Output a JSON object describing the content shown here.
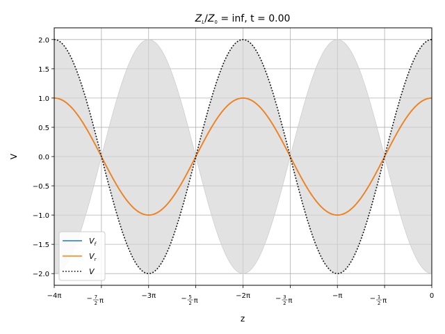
{
  "chart_data": {
    "type": "line",
    "title": "Z_L/Z_0 = inf, t = 0.00",
    "title_parts": {
      "lhs_main": "Z",
      "lhs_sub": "L",
      "slash": "/",
      "rhs_main": "Z",
      "rhs_sub": "0",
      "eq_value": " = inf, t = 0.00"
    },
    "xlabel": "z",
    "ylabel": "V",
    "xlim": [
      -12.566,
      0
    ],
    "ylim": [
      -2.2,
      2.2
    ],
    "grid": true,
    "legend_placement": "lower-left",
    "x_ticks": [
      {
        "value": -12.566,
        "label": "−4π"
      },
      {
        "value": -10.996,
        "label": "−7/2π"
      },
      {
        "value": -9.425,
        "label": "−3π"
      },
      {
        "value": -7.854,
        "label": "−5/2π"
      },
      {
        "value": -6.283,
        "label": "−2π"
      },
      {
        "value": -4.712,
        "label": "−3/2π"
      },
      {
        "value": -3.142,
        "label": "−π"
      },
      {
        "value": -1.571,
        "label": "−1/2π"
      },
      {
        "value": 0,
        "label": "0"
      }
    ],
    "y_ticks": [
      {
        "value": 2.0,
        "label": "2.0"
      },
      {
        "value": 1.5,
        "label": "1.5"
      },
      {
        "value": 1.0,
        "label": "1.0"
      },
      {
        "value": 0.5,
        "label": "0.5"
      },
      {
        "value": 0.0,
        "label": "0.0"
      },
      {
        "value": -0.5,
        "label": "−0.5"
      },
      {
        "value": -1.0,
        "label": "−1.0"
      },
      {
        "value": -1.5,
        "label": "−1.5"
      },
      {
        "value": -2.0,
        "label": "−2.0"
      }
    ],
    "series": [
      {
        "name": "V_f",
        "legend_main": "V",
        "legend_sub": "f",
        "color": "#1f77b4",
        "style": "solid",
        "amplitude": 1.0,
        "function": "cos(z)"
      },
      {
        "name": "V_r",
        "legend_main": "V",
        "legend_sub": "r",
        "color": "#ff7f0e",
        "style": "solid",
        "amplitude": 1.0,
        "function": "cos(z)"
      },
      {
        "name": "V",
        "legend_main": "V",
        "legend_sub": "",
        "color": "#000000",
        "style": "dotted",
        "amplitude": 2.0,
        "function": "2cos(z)"
      }
    ],
    "envelope": {
      "function": "±2|cos(z)|",
      "color": "#d3d3d3"
    }
  }
}
